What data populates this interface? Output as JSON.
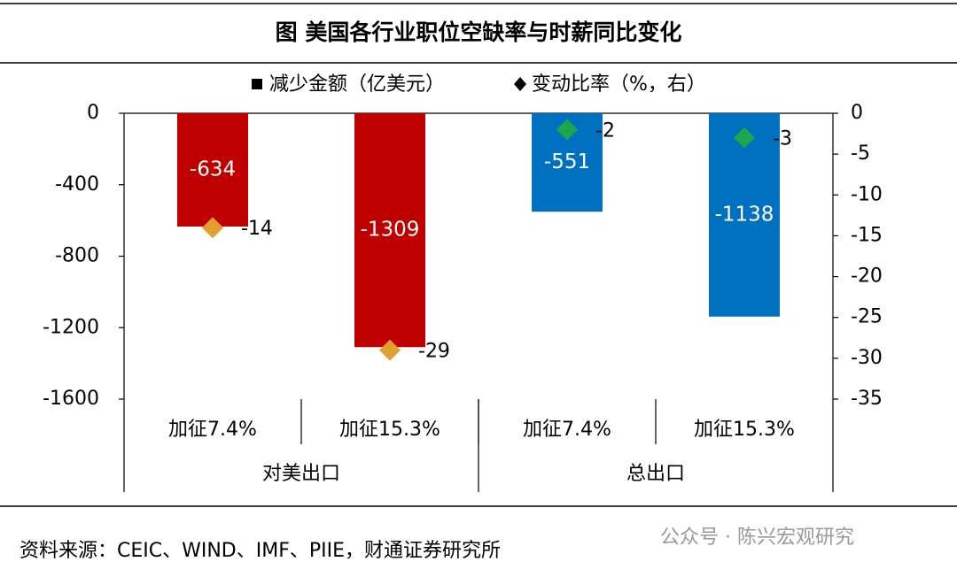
{
  "chart_data": {
    "type": "bar",
    "title": "图  美国各行业职位空缺率与时薪同比变化",
    "categories": [
      "加征7.4%",
      "加征15.3%",
      "加征7.4%",
      "加征15.3%"
    ],
    "groups": [
      "对美出口",
      "总出口"
    ],
    "series": [
      {
        "name": "减少金额（亿美元）",
        "color": "#000000",
        "colors": [
          "#c00000",
          "#c00000",
          "#0070c0",
          "#0070c0"
        ],
        "values": [
          -634,
          -1309,
          -551,
          -1138
        ]
      },
      {
        "name": "变动比率（%，右）",
        "axis": "y2",
        "color": "#000000",
        "colors": [
          "#e0a030",
          "#e0a030",
          "#1ea64a",
          "#1ea64a"
        ],
        "values": [
          -14,
          -29,
          -2,
          -3
        ]
      }
    ],
    "ylim": [
      -1600,
      0
    ],
    "yticks": [
      0,
      -400,
      -800,
      -1200,
      -1600
    ],
    "y2lim": [
      -35,
      0
    ],
    "y2ticks": [
      0,
      -5,
      -10,
      -15,
      -20,
      -25,
      -30,
      -35
    ],
    "source": "资料来源：CEIC、WIND、IMF、PIIE，财通证券研究所",
    "watermark": "公众号 · 陈兴宏观研究"
  }
}
